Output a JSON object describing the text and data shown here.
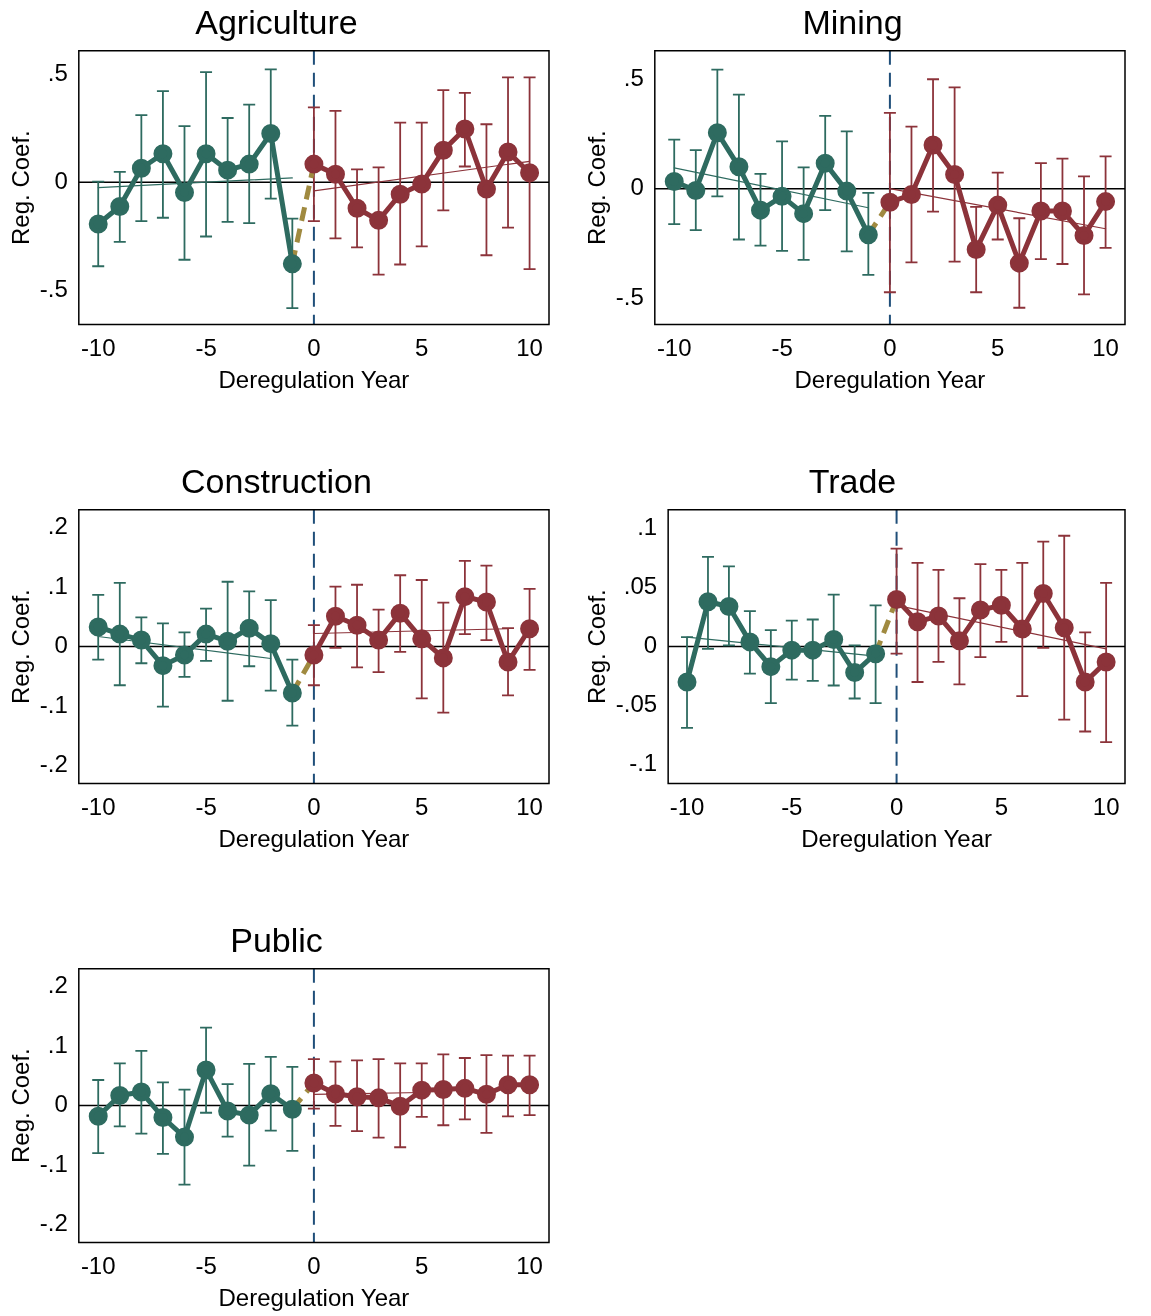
{
  "chart_data": [
    {
      "type": "line",
      "title": "Agriculture",
      "xlabel": "Deregulation Year",
      "ylabel": "Reg. Coef.",
      "xlim": [
        -10.9,
        10.9
      ],
      "ylim": [
        -0.66,
        0.61
      ],
      "xticks": [
        -10,
        -5,
        0,
        5,
        10
      ],
      "yticks": [
        {
          "value": -0.5,
          "label": "-.5"
        },
        {
          "value": 0,
          "label": "0"
        },
        {
          "value": 0.5,
          "label": ".5"
        }
      ],
      "ref_lines": [
        {
          "axis": "x",
          "value": 0,
          "color": "#1f4e79",
          "line_style": "dashed"
        },
        {
          "axis": "y",
          "value": 0,
          "color": "#000000",
          "line_style": "solid"
        }
      ],
      "series": [
        {
          "color": "#2e6b60",
          "marker": "none",
          "line_style": "solid",
          "x": [
            -10,
            -1
          ],
          "values": [
            -0.025,
            0.02
          ]
        },
        {
          "color": "#8c333a",
          "marker": "none",
          "line_style": "solid",
          "x": [
            0,
            10
          ],
          "values": [
            -0.04,
            0.097
          ]
        },
        {
          "color": "#a08a40",
          "marker": "none",
          "line_style": "dashed",
          "x": [
            -1,
            0
          ],
          "values": [
            -0.379,
            0.084
          ]
        },
        {
          "color": "#2e6b60",
          "marker": "circle",
          "line_style": "solid",
          "x": [
            -10,
            -9,
            -8,
            -7,
            -6,
            -5,
            -4,
            -3,
            -2,
            -1
          ],
          "values": [
            -0.194,
            -0.113,
            0.065,
            0.132,
            -0.048,
            0.132,
            0.056,
            0.084,
            0.226,
            -0.379
          ],
          "errors": [
            [
              -0.39,
              0.003
            ],
            [
              -0.277,
              0.048
            ],
            [
              -0.181,
              0.311
            ],
            [
              -0.165,
              0.423
            ],
            [
              -0.36,
              0.26
            ],
            [
              -0.252,
              0.511
            ],
            [
              -0.184,
              0.298
            ],
            [
              -0.19,
              0.36
            ],
            [
              -0.076,
              0.524
            ],
            [
              -0.584,
              -0.169
            ]
          ]
        },
        {
          "color": "#8c333a",
          "marker": "circle",
          "line_style": "solid",
          "x": [
            0,
            1,
            2,
            3,
            4,
            5,
            6,
            7,
            8,
            9,
            10
          ],
          "values": [
            0.084,
            0.037,
            -0.121,
            -0.177,
            -0.056,
            -0.008,
            0.148,
            0.247,
            -0.032,
            0.14,
            0.044
          ],
          "errors": [
            [
              -0.181,
              0.347
            ],
            [
              -0.261,
              0.331
            ],
            [
              -0.302,
              0.06
            ],
            [
              -0.429,
              0.069
            ],
            [
              -0.382,
              0.277
            ],
            [
              -0.298,
              0.277
            ],
            [
              -0.131,
              0.427
            ],
            [
              0.073,
              0.415
            ],
            [
              -0.339,
              0.269
            ],
            [
              -0.211,
              0.487
            ],
            [
              -0.403,
              0.487
            ]
          ]
        }
      ]
    },
    {
      "type": "line",
      "title": "Mining",
      "xlabel": "Deregulation Year",
      "ylabel": "Reg. Coef.",
      "xlim": [
        -10.9,
        10.9
      ],
      "ylim": [
        -0.62,
        0.63
      ],
      "xticks": [
        -10,
        -5,
        0,
        5,
        10
      ],
      "yticks": [
        {
          "value": -0.5,
          "label": "-.5"
        },
        {
          "value": 0,
          "label": "0"
        },
        {
          "value": 0.5,
          "label": ".5"
        }
      ],
      "ref_lines": [
        {
          "axis": "x",
          "value": 0,
          "color": "#1f4e79",
          "line_style": "dashed"
        },
        {
          "axis": "y",
          "value": 0,
          "color": "#000000",
          "line_style": "solid"
        }
      ],
      "series": [
        {
          "color": "#2e6b60",
          "marker": "none",
          "line_style": "solid",
          "x": [
            -10,
            -1
          ],
          "values": [
            0.095,
            -0.087
          ]
        },
        {
          "color": "#8c333a",
          "marker": "none",
          "line_style": "solid",
          "x": [
            0,
            10
          ],
          "values": [
            0,
            -0.183
          ]
        },
        {
          "color": "#a08a40",
          "marker": "none",
          "line_style": "dashed",
          "x": [
            -1,
            0
          ],
          "values": [
            -0.21,
            -0.062
          ]
        },
        {
          "color": "#2e6b60",
          "marker": "circle",
          "line_style": "solid",
          "x": [
            -10,
            -9,
            -8,
            -7,
            -6,
            -5,
            -4,
            -3,
            -2,
            -1
          ],
          "values": [
            0.033,
            -0.008,
            0.256,
            0.1,
            -0.098,
            -0.035,
            -0.114,
            0.116,
            -0.011,
            -0.21
          ],
          "errors": [
            [
              -0.162,
              0.224
            ],
            [
              -0.189,
              0.176
            ],
            [
              -0.035,
              0.544
            ],
            [
              -0.232,
              0.43
            ],
            [
              -0.26,
              0.068
            ],
            [
              -0.284,
              0.216
            ],
            [
              -0.325,
              0.097
            ],
            [
              -0.098,
              0.333
            ],
            [
              -0.286,
              0.262
            ],
            [
              -0.394,
              -0.019
            ]
          ]
        },
        {
          "color": "#8c333a",
          "marker": "circle",
          "line_style": "solid",
          "x": [
            0,
            1,
            2,
            3,
            4,
            5,
            6,
            7,
            8,
            9,
            10
          ],
          "values": [
            -0.062,
            -0.027,
            0.2,
            0.065,
            -0.278,
            -0.075,
            -0.34,
            -0.102,
            -0.102,
            -0.214,
            -0.059
          ],
          "errors": [
            [
              -0.473,
              0.346
            ],
            [
              -0.337,
              0.284
            ],
            [
              -0.105,
              0.5
            ],
            [
              -0.333,
              0.463
            ],
            [
              -0.473,
              -0.083
            ],
            [
              -0.232,
              0.073
            ],
            [
              -0.544,
              -0.135
            ],
            [
              -0.322,
              0.117
            ],
            [
              -0.344,
              0.137
            ],
            [
              -0.483,
              0.056
            ],
            [
              -0.27,
              0.148
            ]
          ]
        }
      ]
    },
    {
      "type": "line",
      "title": "Construction",
      "xlabel": "Deregulation Year",
      "ylabel": "Reg. Coef.",
      "xlim": [
        -10.9,
        10.9
      ],
      "ylim": [
        -0.23,
        0.23
      ],
      "xticks": [
        -10,
        -5,
        0,
        5,
        10
      ],
      "yticks": [
        {
          "value": -0.2,
          "label": "-.2"
        },
        {
          "value": -0.1,
          "label": "-.1"
        },
        {
          "value": 0,
          "label": "0"
        },
        {
          "value": 0.1,
          "label": ".1"
        },
        {
          "value": 0.2,
          "label": ".2"
        }
      ],
      "ref_lines": [
        {
          "axis": "x",
          "value": 0,
          "color": "#1f4e79",
          "line_style": "dashed"
        },
        {
          "axis": "y",
          "value": 0,
          "color": "#000000",
          "line_style": "solid"
        }
      ],
      "series": [
        {
          "color": "#2e6b60",
          "marker": "none",
          "line_style": "solid",
          "x": [
            -10,
            -2
          ],
          "values": [
            0.017,
            -0.02
          ]
        },
        {
          "color": "#8c333a",
          "marker": "none",
          "line_style": "solid",
          "x": [
            0,
            9
          ],
          "values": [
            0.022,
            0.03
          ]
        },
        {
          "color": "#a08a40",
          "marker": "none",
          "line_style": "dashed",
          "x": [
            -1,
            0
          ],
          "values": [
            -0.078,
            -0.014
          ]
        },
        {
          "color": "#2e6b60",
          "marker": "circle",
          "line_style": "solid",
          "x": [
            -10,
            -9,
            -8,
            -7,
            -6,
            -5,
            -4,
            -3,
            -2,
            -1
          ],
          "values": [
            0.033,
            0.021,
            0.011,
            -0.032,
            -0.014,
            0.021,
            0.009,
            0.031,
            0.005,
            -0.078
          ],
          "errors": [
            [
              -0.022,
              0.087
            ],
            [
              -0.065,
              0.107
            ],
            [
              -0.028,
              0.049
            ],
            [
              -0.101,
              0.039
            ],
            [
              -0.051,
              0.024
            ],
            [
              -0.024,
              0.064
            ],
            [
              -0.091,
              0.109
            ],
            [
              -0.033,
              0.093
            ],
            [
              -0.074,
              0.078
            ],
            [
              -0.133,
              -0.022
            ]
          ]
        },
        {
          "color": "#8c333a",
          "marker": "circle",
          "line_style": "solid",
          "x": [
            0,
            1,
            2,
            3,
            4,
            5,
            6,
            7,
            8,
            9,
            10
          ],
          "values": [
            -0.014,
            0.051,
            0.036,
            0.011,
            0.056,
            0.013,
            -0.019,
            0.084,
            0.075,
            -0.026,
            0.03
          ],
          "errors": [
            [
              -0.065,
              0.036
            ],
            [
              -0.002,
              0.101
            ],
            [
              -0.035,
              0.104
            ],
            [
              -0.043,
              0.062
            ],
            [
              -0.009,
              0.12
            ],
            [
              -0.087,
              0.112
            ],
            [
              -0.111,
              0.074
            ],
            [
              0.021,
              0.144
            ],
            [
              0.011,
              0.136
            ],
            [
              -0.082,
              0.031
            ],
            [
              -0.039,
              0.097
            ]
          ]
        }
      ]
    },
    {
      "type": "line",
      "title": "Trade",
      "xlabel": "Deregulation Year",
      "ylabel": "Reg. Coef.",
      "xlim": [
        -10.9,
        10.9
      ],
      "ylim": [
        -0.116,
        0.116
      ],
      "xticks": [
        -10,
        -5,
        0,
        5,
        10
      ],
      "yticks": [
        {
          "value": -0.1,
          "label": "-.1"
        },
        {
          "value": -0.05,
          "label": "-.05"
        },
        {
          "value": 0,
          "label": "0"
        },
        {
          "value": 0.05,
          "label": ".05"
        },
        {
          "value": 0.1,
          "label": ".1"
        }
      ],
      "ref_lines": [
        {
          "axis": "x",
          "value": 0,
          "color": "#1f4e79",
          "line_style": "dashed"
        },
        {
          "axis": "y",
          "value": 0,
          "color": "#000000",
          "line_style": "solid"
        }
      ],
      "series": [
        {
          "color": "#2e6b60",
          "marker": "none",
          "line_style": "solid",
          "x": [
            -10,
            -1
          ],
          "values": [
            0.008,
            -0.008
          ]
        },
        {
          "color": "#8c333a",
          "marker": "none",
          "line_style": "solid",
          "x": [
            0,
            10
          ],
          "values": [
            0.035,
            -0.002
          ]
        },
        {
          "color": "#a08a40",
          "marker": "none",
          "line_style": "dashed",
          "x": [
            -1,
            0
          ],
          "values": [
            -0.006,
            0.04
          ]
        },
        {
          "color": "#2e6b60",
          "marker": "circle",
          "line_style": "solid",
          "x": [
            -10,
            -9,
            -8,
            -7,
            -6,
            -5,
            -4,
            -3,
            -2,
            -1
          ],
          "values": [
            -0.03,
            0.038,
            0.034,
            0.004,
            -0.017,
            -0.003,
            -0.003,
            0.006,
            -0.022,
            -0.006
          ],
          "errors": [
            [
              -0.069,
              0.008
            ],
            [
              -0.002,
              0.076
            ],
            [
              0.001,
              0.068
            ],
            [
              -0.023,
              0.03
            ],
            [
              -0.048,
              0.014
            ],
            [
              -0.028,
              0.022
            ],
            [
              -0.029,
              0.023
            ],
            [
              -0.033,
              0.044
            ],
            [
              -0.044,
              0.001
            ],
            [
              -0.048,
              0.035
            ]
          ]
        },
        {
          "color": "#8c333a",
          "marker": "circle",
          "line_style": "solid",
          "x": [
            0,
            1,
            2,
            3,
            4,
            5,
            6,
            7,
            8,
            9,
            10
          ],
          "values": [
            0.04,
            0.021,
            0.026,
            0.005,
            0.031,
            0.035,
            0.015,
            0.045,
            0.016,
            -0.03,
            -0.013
          ],
          "errors": [
            [
              -0.006,
              0.083
            ],
            [
              -0.03,
              0.071
            ],
            [
              -0.013,
              0.065
            ],
            [
              -0.032,
              0.041
            ],
            [
              -0.009,
              0.07
            ],
            [
              0.004,
              0.065
            ],
            [
              -0.042,
              0.071
            ],
            [
              -0.001,
              0.089
            ],
            [
              -0.062,
              0.094
            ],
            [
              -0.072,
              0.012
            ],
            [
              -0.081,
              0.054
            ]
          ]
        }
      ]
    },
    {
      "type": "line",
      "title": "Public",
      "xlabel": "Deregulation Year",
      "ylabel": "Reg. Coef.",
      "xlim": [
        -10.9,
        10.9
      ],
      "ylim": [
        -0.23,
        0.23
      ],
      "xticks": [
        -10,
        -5,
        0,
        5,
        10
      ],
      "yticks": [
        {
          "value": -0.2,
          "label": "-.2"
        },
        {
          "value": -0.1,
          "label": "-.1"
        },
        {
          "value": 0,
          "label": "0"
        },
        {
          "value": 0.1,
          "label": ".1"
        },
        {
          "value": 0.2,
          "label": ".2"
        }
      ],
      "ref_lines": [
        {
          "axis": "x",
          "value": 0,
          "color": "#1f4e79",
          "line_style": "dashed"
        },
        {
          "axis": "y",
          "value": 0,
          "color": "#000000",
          "line_style": "solid"
        }
      ],
      "series": [
        {
          "color": "#8c333a",
          "marker": "none",
          "line_style": "solid",
          "x": [
            0,
            5
          ],
          "values": [
            0.019,
            0.022
          ]
        },
        {
          "color": "#a08a40",
          "marker": "none",
          "line_style": "dashed",
          "x": [
            -1,
            0
          ],
          "values": [
            -0.006,
            0.038
          ]
        },
        {
          "color": "#2e6b60",
          "marker": "circle",
          "line_style": "solid",
          "x": [
            -10,
            -9,
            -8,
            -7,
            -6,
            -5,
            -4,
            -3,
            -2,
            -1
          ],
          "values": [
            -0.018,
            0.017,
            0.023,
            -0.02,
            -0.053,
            0.06,
            -0.009,
            -0.016,
            0.02,
            -0.006
          ],
          "errors": [
            [
              -0.08,
              0.043
            ],
            [
              -0.035,
              0.071
            ],
            [
              -0.047,
              0.092
            ],
            [
              -0.081,
              0.039
            ],
            [
              -0.133,
              0.027
            ],
            [
              -0.012,
              0.131
            ],
            [
              -0.052,
              0.036
            ],
            [
              -0.101,
              0.07
            ],
            [
              -0.042,
              0.082
            ],
            [
              -0.076,
              0.065
            ]
          ]
        },
        {
          "color": "#8c333a",
          "marker": "circle",
          "line_style": "solid",
          "x": [
            0,
            1,
            2,
            3,
            4,
            5,
            6,
            7,
            8,
            9,
            10
          ],
          "values": [
            0.038,
            0.02,
            0.015,
            0.013,
            -0.001,
            0.026,
            0.027,
            0.029,
            0.019,
            0.035,
            0.035
          ],
          "errors": [
            [
              -0.005,
              0.078
            ],
            [
              -0.034,
              0.074
            ],
            [
              -0.043,
              0.076
            ],
            [
              -0.054,
              0.078
            ],
            [
              -0.07,
              0.071
            ],
            [
              -0.019,
              0.071
            ],
            [
              -0.033,
              0.086
            ],
            [
              -0.023,
              0.08
            ],
            [
              -0.046,
              0.085
            ],
            [
              -0.018,
              0.084
            ],
            [
              -0.016,
              0.084
            ]
          ]
        }
      ]
    }
  ]
}
